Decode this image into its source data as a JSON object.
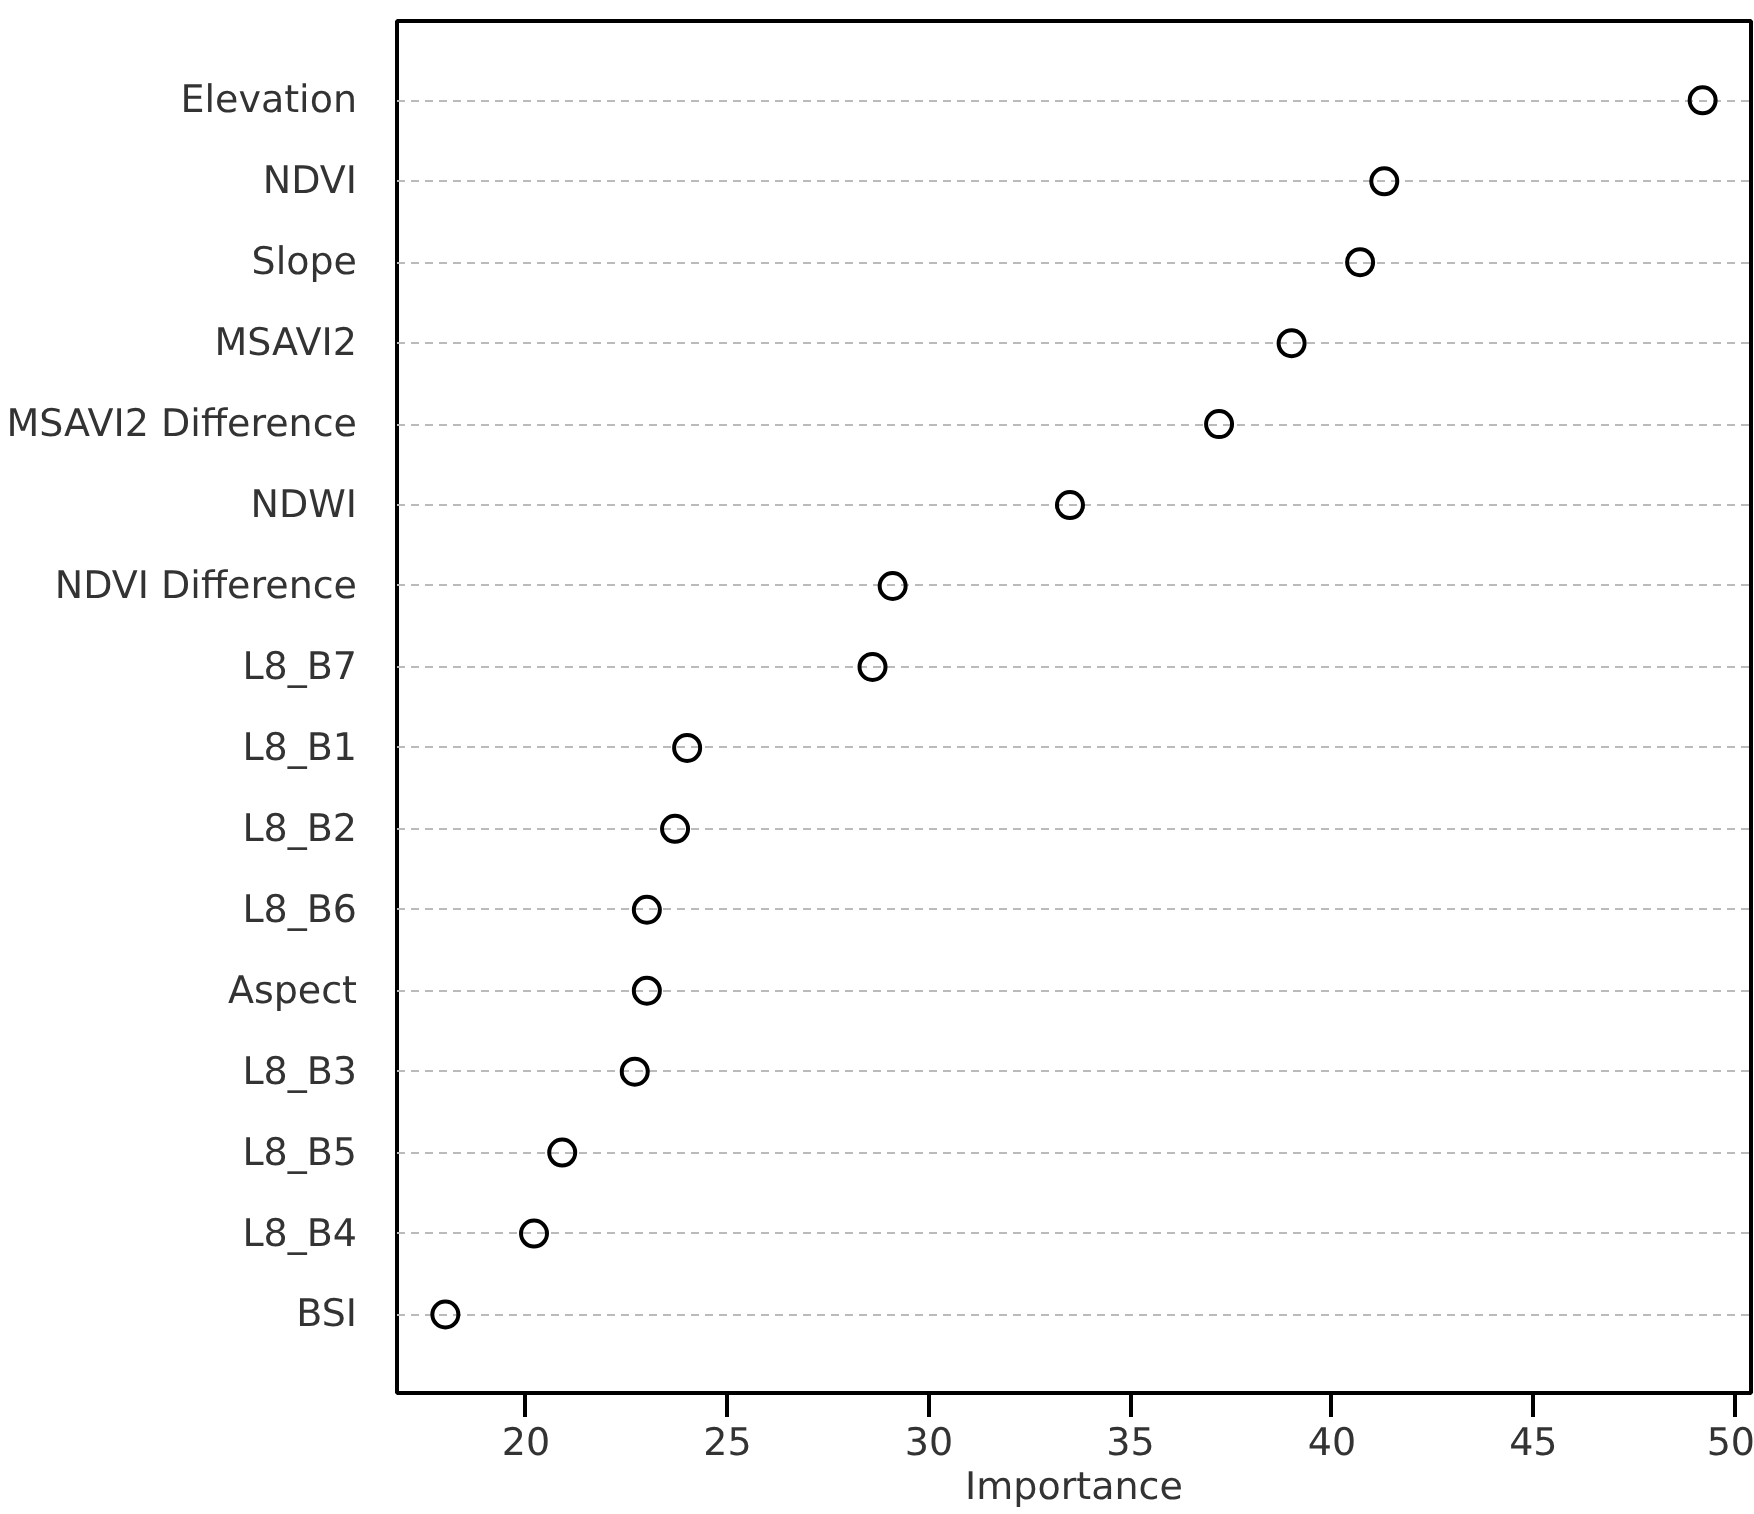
{
  "chart_data": {
    "type": "scatter",
    "xlabel": "Importance",
    "categories": [
      "Elevation",
      "NDVI",
      "Slope",
      "MSAVI2",
      "MSAVI2 Difference",
      "NDWI",
      "NDVI Difference",
      "L8_B7",
      "L8_B1",
      "L8_B2",
      "L8_B6",
      "Aspect",
      "L8_B3",
      "L8_B5",
      "L8_B4",
      "BSI"
    ],
    "orientation": "horizontal",
    "series": [
      {
        "color": "#000000",
        "values": [
          49.2,
          41.3,
          40.7,
          39.0,
          37.2,
          33.5,
          29.1,
          28.6,
          24.0,
          23.7,
          23.0,
          23.0,
          22.7,
          20.9,
          20.2,
          18.0
        ]
      }
    ],
    "xlim": [
      16.8,
      50.4
    ],
    "xticks": [
      20,
      25,
      30,
      35,
      40,
      45,
      50
    ],
    "grid": "y",
    "marker": "circle"
  }
}
